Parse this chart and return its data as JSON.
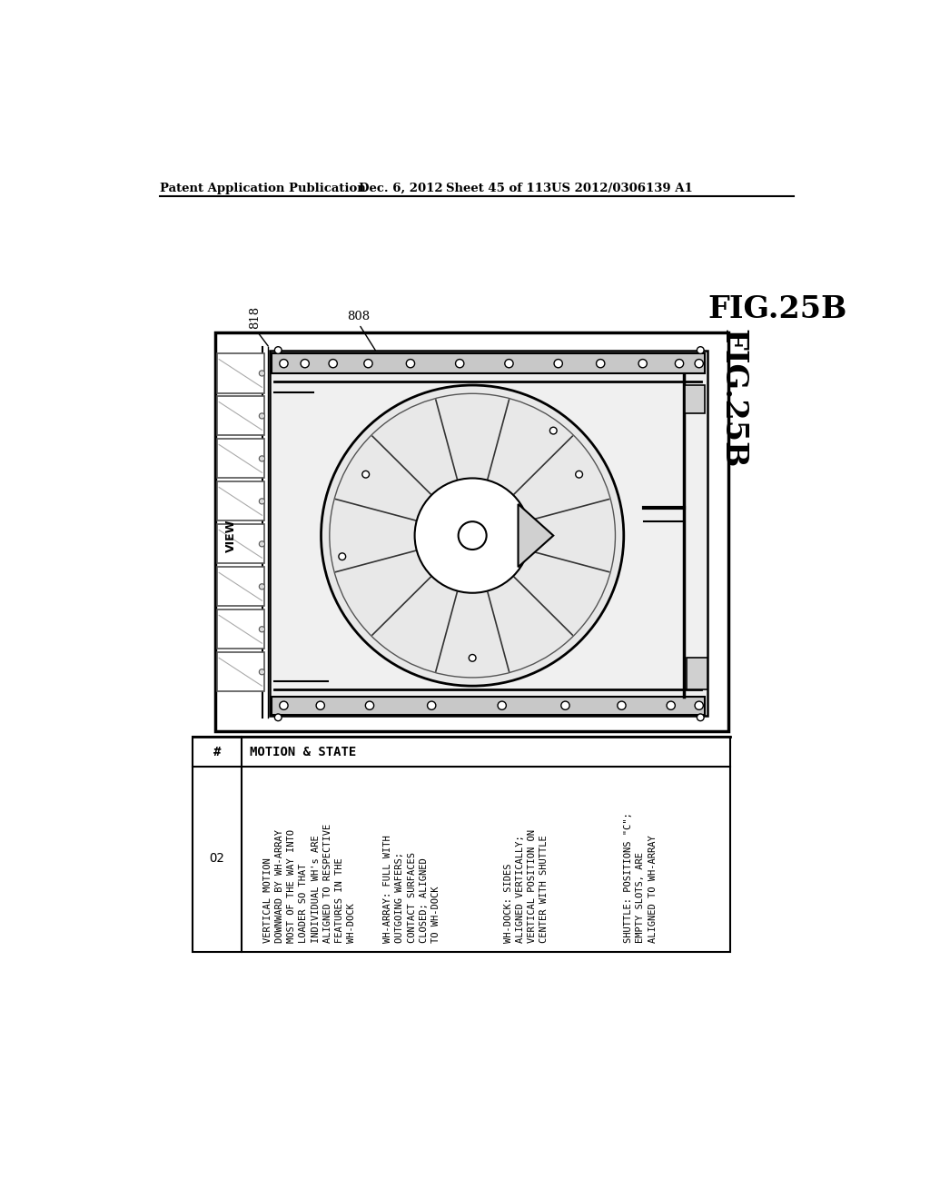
{
  "bg_color": "#ffffff",
  "header_text": "Patent Application Publication",
  "header_date": "Dec. 6, 2012",
  "header_sheet": "Sheet 45 of 113",
  "header_patent": "US 2012/0306139 A1",
  "fig_label": "FIG.25B",
  "label_818": "818",
  "label_808": "808",
  "label_view": "VIEW",
  "table_col1_header": "#",
  "table_col2_header": "MOTION & STATE",
  "table_row1_num": "O2",
  "motion_col1": "VERTICAL MOTION\nDOWNWARD BY WH-ARRAY\nMOST OF THE WAY INTO\nLOADER SO THAT\nINDIVIDUAL WH's ARE\nALIGNED TO RESPECTIVE\nFEATURES IN THE\nWH-DOCK",
  "motion_col2": "WH-ARRAY: FULL WITH\nOUTGOING WAFERS;\nCONTACT SURFACES\nCLOSED; ALIGNED\nTO WH-DOCK",
  "motion_col3": "WH-DOCK: SIDES\nALIGNED VERTICALLY;\nVERTICAL POSITION ON\nCENTER WITH SHUTTLE",
  "motion_col4": "SHUTTLE: POSITIONS \"C\";\nEMPTY SLOTS, ARE\nALIGNED TO WH-ARRAY",
  "line_color": "#000000",
  "text_color": "#000000"
}
